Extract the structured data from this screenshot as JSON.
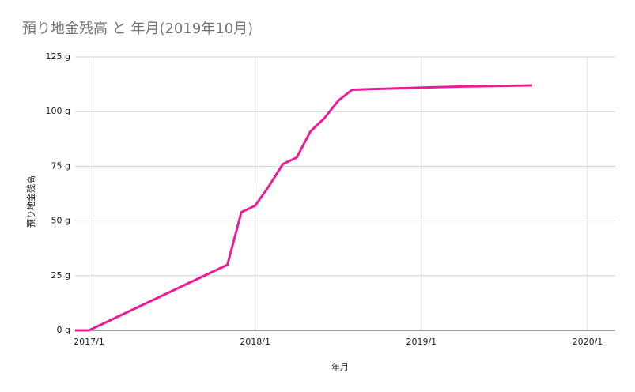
{
  "chart_data": {
    "type": "line",
    "title": "預り地金残高 と 年月(2019年10月)",
    "x_label": "年月",
    "y_label": "預り地金残高",
    "x": [
      "2016/12",
      "2017/1",
      "2017/3",
      "2017/11",
      "2017/12",
      "2018/1",
      "2018/2",
      "2018/3",
      "2018/4",
      "2018/5",
      "2018/6",
      "2018/7",
      "2018/8",
      "2019/1",
      "2019/4",
      "2019/9"
    ],
    "values": [
      0,
      0,
      6,
      30,
      54,
      57,
      66,
      76,
      79,
      91,
      97,
      105,
      110,
      111,
      111.5,
      112
    ],
    "color": "#ec1c99",
    "xlim": [
      "2016/12",
      "2020/3"
    ],
    "xticks": [
      "2017/1",
      "2018/1",
      "2019/1",
      "2020/1"
    ],
    "ylim": [
      0,
      125
    ],
    "yticks": [
      {
        "value": 0,
        "label": "0 g"
      },
      {
        "value": 25,
        "label": "25 g"
      },
      {
        "value": 50,
        "label": "50 g"
      },
      {
        "value": 75,
        "label": "75 g"
      },
      {
        "value": 100,
        "label": "100 g"
      },
      {
        "value": 125,
        "label": "125 g"
      }
    ],
    "grid": true
  }
}
